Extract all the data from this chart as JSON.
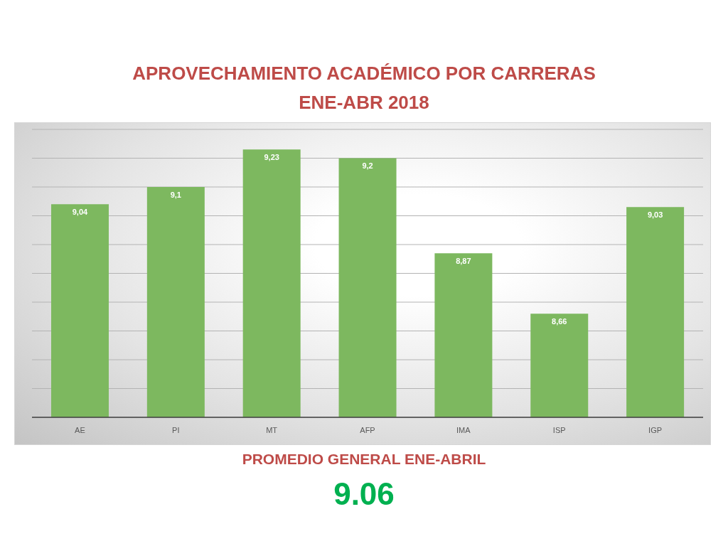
{
  "chart_data": {
    "type": "bar",
    "title": "APROVECHAMIENTO ACADÉMICO POR CARRERAS",
    "subtitle": "ENE-ABR 2018",
    "categories": [
      "AE",
      "PI",
      "MT",
      "AFP",
      "IMA",
      "ISP",
      "IGP"
    ],
    "values": [
      9.04,
      9.1,
      9.23,
      9.2,
      8.87,
      8.66,
      9.03
    ],
    "value_labels": [
      "9,04",
      "9,1",
      "9,23",
      "9,2",
      "8,87",
      "8,66",
      "9,03"
    ],
    "color": "#7db85f",
    "ylim": [
      8.3,
      9.3
    ],
    "yticks": [
      {
        "value": 8.3,
        "label": null
      },
      {
        "value": 8.4,
        "label": null
      },
      {
        "value": 8.5,
        "label": null
      },
      {
        "value": 8.6,
        "label": null
      },
      {
        "value": 8.7,
        "label": null
      },
      {
        "value": 8.8,
        "label": null
      },
      {
        "value": 8.9,
        "label": null
      },
      {
        "value": 9.0,
        "label": null
      },
      {
        "value": 9.1,
        "label": null
      },
      {
        "value": 9.2,
        "label": null
      },
      {
        "value": 9.3,
        "label": null
      }
    ],
    "grid": "y",
    "tick_labels": "x",
    "annotations": [
      "PROMEDIO GENERAL ENE-ABRIL",
      "9.06"
    ]
  }
}
